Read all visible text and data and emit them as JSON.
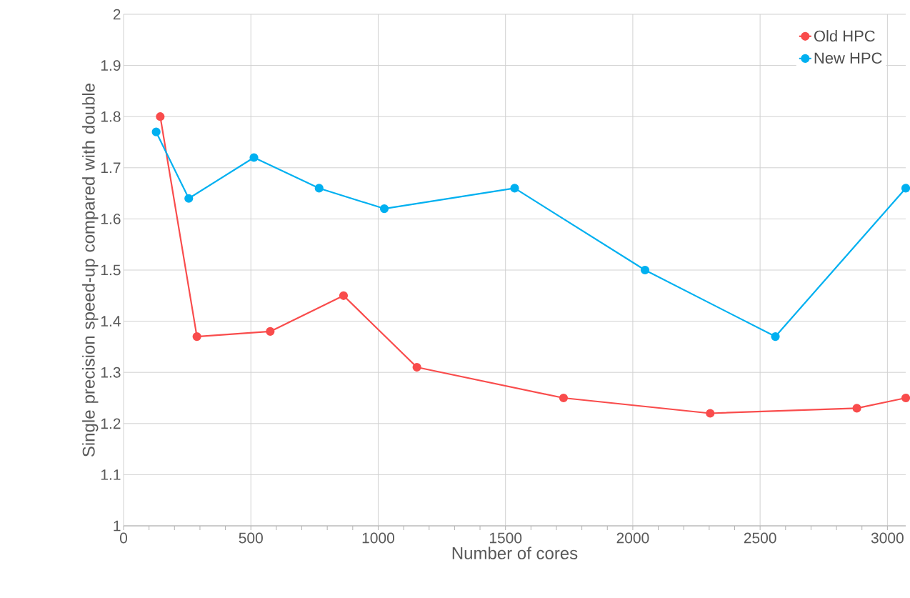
{
  "chart_data": {
    "type": "line",
    "xlabel": "Number of cores",
    "ylabel": "Single precision speed-up compared with double",
    "xlim": [
      0,
      3072
    ],
    "xticks": [
      0,
      500,
      1000,
      1500,
      2000,
      2500,
      3000
    ],
    "ylim": [
      1,
      2
    ],
    "yticks": [
      1,
      1.1,
      1.2,
      1.3,
      1.4,
      1.5,
      1.6,
      1.7,
      1.8,
      1.9,
      2
    ],
    "grid": true,
    "legend": "top right",
    "marker": "circle",
    "line_style": "solid",
    "series": [
      {
        "name": "Old HPC",
        "color": "#f94c4c",
        "x": [
          144,
          288,
          576,
          864,
          1152,
          1728,
          2304,
          2880,
          3072
        ],
        "values": [
          1.8,
          1.37,
          1.38,
          1.45,
          1.31,
          1.25,
          1.22,
          1.23,
          1.25
        ]
      },
      {
        "name": "New HPC",
        "color": "#00b0f0",
        "x": [
          128,
          256,
          512,
          768,
          1024,
          1536,
          2048,
          2560,
          3072
        ],
        "values": [
          1.77,
          1.64,
          1.72,
          1.66,
          1.62,
          1.66,
          1.5,
          1.37,
          1.66
        ]
      }
    ]
  }
}
